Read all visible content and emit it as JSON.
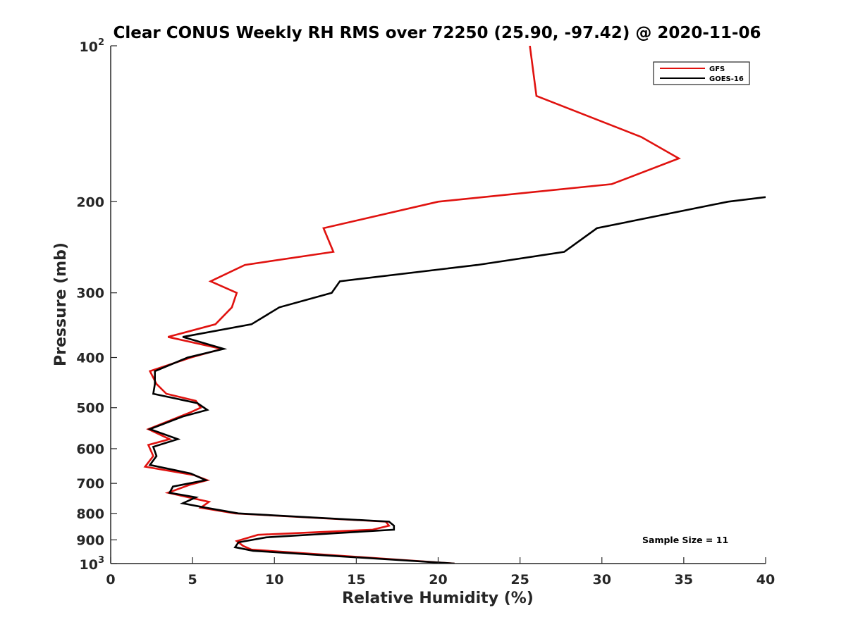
{
  "chart_data": {
    "type": "line",
    "title": "Clear CONUS Weekly RH RMS over 72250 (25.90, -97.42) @ 2020-11-06",
    "xlabel": "Relative Humidity (%)",
    "ylabel": "Pressure (mb)",
    "xlim": [
      0,
      40
    ],
    "ylim": [
      100,
      1000
    ],
    "yscale": "log",
    "y_reversed": true,
    "grid": false,
    "legend_position": "top-right",
    "x_ticks": [
      0,
      5,
      10,
      15,
      20,
      25,
      30,
      35,
      40
    ],
    "x_tick_labels": [
      "0",
      "5",
      "10",
      "15",
      "20",
      "25",
      "30",
      "35",
      "40"
    ],
    "y_ticks": [
      {
        "value": 100,
        "base": "10",
        "exp": "2"
      },
      {
        "value": 200,
        "label": "200"
      },
      {
        "value": 300,
        "label": "300"
      },
      {
        "value": 400,
        "label": "400"
      },
      {
        "value": 500,
        "label": "500"
      },
      {
        "value": 600,
        "label": "600"
      },
      {
        "value": 700,
        "label": "700"
      },
      {
        "value": 800,
        "label": "800"
      },
      {
        "value": 900,
        "label": "900"
      },
      {
        "value": 1000,
        "base": "10",
        "exp": "3"
      }
    ],
    "annotation": "Sample Size = 11",
    "series": [
      {
        "name": "GFS",
        "color": "#e0120f",
        "points": [
          [
            25.6,
            100
          ],
          [
            26.0,
            125
          ],
          [
            32.4,
            150
          ],
          [
            34.7,
            165
          ],
          [
            30.6,
            185
          ],
          [
            20.0,
            200
          ],
          [
            13.0,
            225
          ],
          [
            13.6,
            250
          ],
          [
            8.2,
            265
          ],
          [
            6.1,
            285
          ],
          [
            7.7,
            300
          ],
          [
            7.4,
            320
          ],
          [
            6.4,
            345
          ],
          [
            3.5,
            365
          ],
          [
            6.8,
            385
          ],
          [
            4.9,
            400
          ],
          [
            2.4,
            425
          ],
          [
            2.8,
            450
          ],
          [
            3.4,
            470
          ],
          [
            5.2,
            485
          ],
          [
            5.5,
            500
          ],
          [
            4.9,
            510
          ],
          [
            2.3,
            550
          ],
          [
            3.6,
            575
          ],
          [
            2.3,
            590
          ],
          [
            2.6,
            620
          ],
          [
            2.1,
            650
          ],
          [
            5.1,
            675
          ],
          [
            5.9,
            690
          ],
          [
            4.8,
            705
          ],
          [
            3.5,
            730
          ],
          [
            6.0,
            760
          ],
          [
            5.5,
            780
          ],
          [
            7.6,
            800
          ],
          [
            16.8,
            830
          ],
          [
            17.0,
            845
          ],
          [
            16.0,
            860
          ],
          [
            9.0,
            880
          ],
          [
            7.7,
            905
          ],
          [
            8.1,
            925
          ],
          [
            8.6,
            940
          ],
          [
            21.0,
            1000
          ]
        ]
      },
      {
        "name": "GOES-16",
        "color": "#000000",
        "points": [
          [
            40.0,
            196
          ],
          [
            37.7,
            200
          ],
          [
            29.7,
            225
          ],
          [
            27.7,
            250
          ],
          [
            22.4,
            265
          ],
          [
            14.0,
            285
          ],
          [
            13.5,
            300
          ],
          [
            10.3,
            320
          ],
          [
            8.6,
            345
          ],
          [
            4.4,
            365
          ],
          [
            6.9,
            385
          ],
          [
            4.7,
            400
          ],
          [
            2.7,
            425
          ],
          [
            2.7,
            450
          ],
          [
            2.6,
            470
          ],
          [
            5.3,
            490
          ],
          [
            5.9,
            505
          ],
          [
            4.4,
            520
          ],
          [
            2.4,
            550
          ],
          [
            4.1,
            575
          ],
          [
            2.6,
            595
          ],
          [
            2.8,
            620
          ],
          [
            2.4,
            645
          ],
          [
            4.9,
            670
          ],
          [
            5.8,
            690
          ],
          [
            3.8,
            710
          ],
          [
            3.6,
            730
          ],
          [
            5.2,
            745
          ],
          [
            4.4,
            765
          ],
          [
            5.8,
            780
          ],
          [
            7.8,
            800
          ],
          [
            17.0,
            830
          ],
          [
            17.3,
            845
          ],
          [
            17.3,
            860
          ],
          [
            9.5,
            890
          ],
          [
            7.8,
            910
          ],
          [
            7.6,
            930
          ],
          [
            8.7,
            945
          ],
          [
            21.0,
            1000
          ]
        ]
      }
    ]
  }
}
